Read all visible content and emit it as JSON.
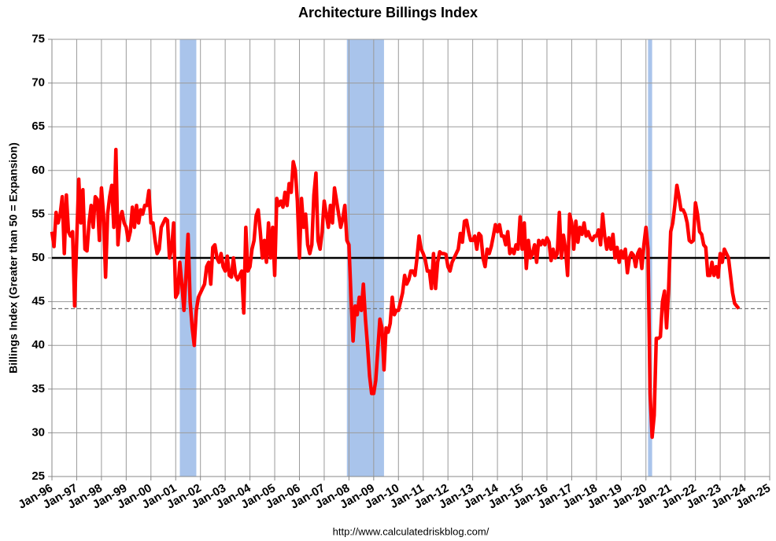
{
  "chart_data": {
    "type": "line",
    "title": "Architecture Billings Index",
    "y_label": "Billings Index (Greater than 50 = Expansion)",
    "source": "http://www.calculatedriskblog.com/",
    "categories": [
      "Jan-96",
      null,
      null,
      null,
      null,
      null,
      null,
      null,
      null,
      null,
      null,
      null,
      "Jan-97",
      null,
      null,
      null,
      null,
      null,
      null,
      null,
      null,
      null,
      null,
      null,
      "Jan-98",
      null,
      null,
      null,
      null,
      null,
      null,
      null,
      null,
      null,
      null,
      null,
      "Jan-99",
      null,
      null,
      null,
      null,
      null,
      null,
      null,
      null,
      null,
      null,
      null,
      "Jan-00",
      null,
      null,
      null,
      null,
      null,
      null,
      null,
      null,
      null,
      null,
      null,
      "Jan-01",
      null,
      null,
      null,
      null,
      null,
      null,
      null,
      null,
      null,
      null,
      null,
      "Jan-02",
      null,
      null,
      null,
      null,
      null,
      null,
      null,
      null,
      null,
      null,
      null,
      "Jan-03",
      null,
      null,
      null,
      null,
      null,
      null,
      null,
      null,
      null,
      null,
      null,
      "Jan-04",
      null,
      null,
      null,
      null,
      null,
      null,
      null,
      null,
      null,
      null,
      null,
      "Jan-05",
      null,
      null,
      null,
      null,
      null,
      null,
      null,
      null,
      null,
      null,
      null,
      "Jan-06",
      null,
      null,
      null,
      null,
      null,
      null,
      null,
      null,
      null,
      null,
      null,
      "Jan-07",
      null,
      null,
      null,
      null,
      null,
      null,
      null,
      null,
      null,
      null,
      null,
      "Jan-08",
      null,
      null,
      null,
      null,
      null,
      null,
      null,
      null,
      null,
      null,
      null,
      "Jan-09",
      null,
      null,
      null,
      null,
      null,
      null,
      null,
      null,
      null,
      null,
      null,
      "Jan-10",
      null,
      null,
      null,
      null,
      null,
      null,
      null,
      null,
      null,
      null,
      null,
      "Jan-11",
      null,
      null,
      null,
      null,
      null,
      null,
      null,
      null,
      null,
      null,
      null,
      "Jan-12",
      null,
      null,
      null,
      null,
      null,
      null,
      null,
      null,
      null,
      null,
      null,
      "Jan-13",
      null,
      null,
      null,
      null,
      null,
      null,
      null,
      null,
      null,
      null,
      null,
      "Jan-14",
      null,
      null,
      null,
      null,
      null,
      null,
      null,
      null,
      null,
      null,
      null,
      "Jan-15",
      null,
      null,
      null,
      null,
      null,
      null,
      null,
      null,
      null,
      null,
      null,
      "Jan-16",
      null,
      null,
      null,
      null,
      null,
      null,
      null,
      null,
      null,
      null,
      null,
      "Jan-17",
      null,
      null,
      null,
      null,
      null,
      null,
      null,
      null,
      null,
      null,
      null,
      "Jan-18",
      null,
      null,
      null,
      null,
      null,
      null,
      null,
      null,
      null,
      null,
      null,
      "Jan-19",
      null,
      null,
      null,
      null,
      null,
      null,
      null,
      null,
      null,
      null,
      null,
      "Jan-20",
      null,
      null,
      null,
      null,
      null,
      null,
      null,
      null,
      null,
      null,
      null,
      "Jan-21",
      null,
      null,
      null,
      null,
      null,
      null,
      null,
      null,
      null,
      null,
      null,
      "Jan-22",
      null,
      null,
      null,
      null,
      null,
      null,
      null,
      null,
      null,
      null,
      null,
      "Jan-23",
      null,
      null,
      null,
      null,
      null,
      null,
      null,
      null,
      null,
      null,
      null,
      "Jan-24",
      null,
      null,
      null,
      null,
      null,
      null,
      null,
      null,
      null,
      null,
      null,
      "Jan-25"
    ],
    "series": [
      {
        "color": "#ff0000",
        "values": [
          53,
          51.3,
          55.2,
          54,
          55,
          57,
          50.5,
          57.2,
          53,
          52.5,
          53,
          44.5,
          52,
          59,
          54,
          57.8,
          51,
          50.8,
          54,
          56,
          53.5,
          57,
          56.7,
          52,
          58,
          55,
          47.8,
          55,
          57,
          58.3,
          53.5,
          62.4,
          51.5,
          54.5,
          55.3,
          54,
          53.5,
          52,
          53,
          55.8,
          53.5,
          56,
          54,
          55.5,
          55,
          56,
          56,
          57.7,
          54,
          54,
          52,
          50.5,
          51,
          53.5,
          54,
          54.5,
          54.3,
          50,
          51,
          54,
          45.5,
          46,
          49.5,
          47,
          44,
          48,
          52.7,
          45,
          42,
          40,
          44,
          45.5,
          46,
          46.5,
          47,
          49,
          49.5,
          47,
          51.2,
          51.5,
          50,
          49.5,
          50.5,
          49,
          48.5,
          50.2,
          48,
          47.8,
          50,
          48,
          47.5,
          48,
          48.5,
          43.7,
          53.5,
          48.5,
          49,
          51,
          52,
          54.8,
          55.5,
          53,
          50,
          52,
          49.5,
          54,
          50,
          53.5,
          48,
          56.8,
          56,
          56.5,
          55.8,
          57.5,
          56,
          58.5,
          57.5,
          61,
          60,
          56.5,
          50,
          56.8,
          53.5,
          55,
          51.5,
          50.5,
          51.5,
          57.2,
          59.7,
          52,
          51,
          53,
          56.5,
          55,
          53.5,
          56,
          54,
          58,
          56.5,
          55,
          53.5,
          54.5,
          56,
          52,
          51.5,
          45.5,
          40.5,
          44.5,
          43.5,
          45.5,
          44,
          47,
          43,
          40,
          36.5,
          34.5,
          34.5,
          36,
          39.5,
          43,
          42,
          37.2,
          42,
          41.5,
          42.5,
          45.5,
          43.5,
          44,
          44,
          45,
          46,
          48,
          47,
          47.5,
          48.5,
          48.5,
          48,
          50,
          52.5,
          51,
          50.5,
          49.8,
          48.5,
          48.5,
          46.5,
          50.5,
          46.5,
          49.5,
          50.7,
          50.5,
          50.5,
          50.4,
          49,
          48.5,
          49.5,
          50,
          50.5,
          51,
          52.8,
          51.8,
          54.2,
          54.3,
          53,
          52,
          52,
          52.5,
          51,
          52.8,
          52.5,
          50,
          49,
          51,
          50.5,
          51.3,
          52.5,
          53.8,
          53,
          53.8,
          52.5,
          52.5,
          51.5,
          53,
          50.5,
          51,
          50.5,
          51.5,
          51,
          54.7,
          51,
          54,
          48.8,
          52,
          50,
          50.5,
          51.5,
          49.5,
          52,
          51.5,
          52,
          51.5,
          52.3,
          51.8,
          49.7,
          51,
          50,
          50.5,
          55.2,
          50,
          52.6,
          51,
          48,
          55,
          54,
          51,
          54.2,
          51.8,
          53.5,
          52.7,
          54,
          52.5,
          53,
          52.3,
          52,
          52.5,
          52.5,
          53.2,
          51.5,
          55,
          52.5,
          51,
          52.3,
          51,
          52.7,
          50,
          51.2,
          49.5,
          50.8,
          50,
          51,
          48.3,
          50,
          50.6,
          50.3,
          49,
          50.5,
          51,
          48.8,
          51.5,
          53.5,
          51,
          34.5,
          29.5,
          32,
          40.8,
          40.8,
          41,
          45,
          46.2,
          42,
          46.5,
          53,
          54,
          56,
          58.3,
          57,
          55.5,
          55.5,
          55,
          54,
          52,
          51.8,
          52,
          56.3,
          55,
          53,
          52.7,
          51.5,
          51.2,
          48,
          48,
          49.5,
          48,
          49,
          47.8,
          50.5,
          49.5,
          51,
          50.5,
          50,
          48,
          46,
          44.8,
          44.5,
          44.2,
          null,
          null,
          null,
          null,
          null,
          null,
          null,
          null,
          null,
          null,
          null,
          null,
          null,
          null,
          null
        ]
      }
    ],
    "ylim": [
      25,
      75
    ],
    "yticks": [
      25,
      30,
      35,
      40,
      45,
      50,
      55,
      60,
      65,
      70,
      75
    ],
    "grid": true,
    "shaded_periods": [
      {
        "start": "Mar-01",
        "end": "Nov-01",
        "color": "#a9c4eb"
      },
      {
        "start": "Dec-07",
        "end": "Jun-09",
        "color": "#a9c4eb"
      },
      {
        "start": "Feb-20",
        "end": "Apr-20",
        "color": "#a9c4eb"
      }
    ],
    "reference_lines": [
      {
        "value": 50,
        "style": "solid",
        "color": "#000000"
      },
      {
        "value": 44.2,
        "style": "dashed",
        "color": "#777777"
      }
    ]
  }
}
